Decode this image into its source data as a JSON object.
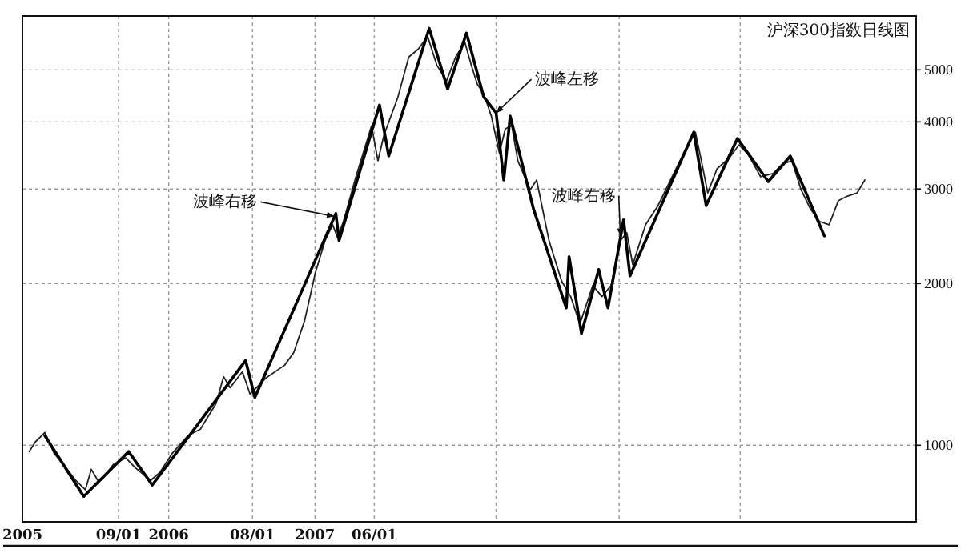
{
  "chart_data": {
    "type": "line",
    "title": "沪深300指数日线图",
    "xlim": [
      "2005-01-04",
      "2011-02-12"
    ],
    "ylim": [
      720,
      6300
    ],
    "log": "y",
    "grid": true,
    "marker": "none",
    "line_style": "solid",
    "xticks": [
      {
        "value": "2005-01-04",
        "label": "2005"
      },
      {
        "value": "2005-09-01",
        "label": "09/01"
      },
      {
        "value": "2006-01-04",
        "label": "2006"
      },
      {
        "value": "2006-08-01",
        "label": "08/01"
      },
      {
        "value": "2007-01-04",
        "label": "2007"
      },
      {
        "value": "2007-06-01",
        "label": "06/01"
      },
      {
        "value": "2008-03-31",
        "label": null
      },
      {
        "value": "2009-02-01",
        "label": null
      },
      {
        "value": "2009-11-30",
        "label": null
      }
    ],
    "yticks": [
      1000,
      2000,
      3000,
      4000,
      5000
    ],
    "series": [
      {
        "color": "#222222",
        "x": [
          "2005-01-21",
          "2005-02-05",
          "2005-03-01",
          "2005-03-24",
          "2005-04-16",
          "2005-05-17",
          "2005-06-10",
          "2005-06-25",
          "2005-07-11",
          "2005-07-26",
          "2005-08-19",
          "2005-09-19",
          "2005-10-12",
          "2005-11-20",
          "2005-12-13",
          "2006-01-13",
          "2006-02-21",
          "2006-03-24",
          "2006-05-02",
          "2006-05-21",
          "2006-06-06",
          "2006-07-07",
          "2006-07-26",
          "2006-09-03",
          "2006-10-20",
          "2006-11-12",
          "2006-12-09",
          "2007-01-05",
          "2007-01-29",
          "2007-02-17",
          "2007-03-01",
          "2007-03-16",
          "2007-04-16",
          "2007-05-13",
          "2007-05-25",
          "2007-06-10",
          "2007-06-25",
          "2007-07-30",
          "2007-08-26",
          "2007-09-19",
          "2007-10-12",
          "2007-11-04",
          "2007-11-28",
          "2007-12-21",
          "2008-01-13",
          "2008-01-29",
          "2008-02-13",
          "2008-02-29",
          "2008-03-19",
          "2008-04-08",
          "2008-04-23",
          "2008-05-09",
          "2008-05-24",
          "2008-06-24",
          "2008-07-10",
          "2008-08-10",
          "2008-09-10",
          "2008-10-03",
          "2008-10-26",
          "2008-11-11",
          "2008-11-27",
          "2008-12-20",
          "2009-01-12",
          "2009-02-04",
          "2009-02-20",
          "2009-03-07",
          "2009-04-08",
          "2009-05-09",
          "2009-06-09",
          "2009-07-18",
          "2009-08-10",
          "2009-08-25",
          "2009-09-10",
          "2009-10-03",
          "2009-11-03",
          "2009-11-27",
          "2009-12-20",
          "2010-01-20",
          "2010-02-20",
          "2010-03-15",
          "2010-04-08",
          "2010-05-01",
          "2010-05-24",
          "2010-06-16",
          "2010-07-10",
          "2010-08-02",
          "2010-08-25",
          "2010-09-18",
          "2010-10-07"
        ],
        "values": [
          973,
          1014,
          1056,
          966,
          921,
          860,
          826,
          902,
          860,
          872,
          921,
          947,
          909,
          860,
          890,
          966,
          1042,
          1071,
          1195,
          1342,
          1280,
          1370,
          1245,
          1333,
          1409,
          1488,
          1706,
          2096,
          2403,
          2574,
          2436,
          2610,
          3161,
          3676,
          3935,
          3386,
          3778,
          4451,
          5283,
          5469,
          5775,
          5103,
          4765,
          5283,
          5626,
          5103,
          4701,
          4511,
          4100,
          3501,
          3883,
          3935,
          3386,
          2990,
          3117,
          2403,
          2025,
          1891,
          1683,
          1827,
          1984,
          1891,
          1984,
          2403,
          2487,
          2168,
          2574,
          2794,
          3117,
          3573,
          3828,
          3386,
          2950,
          3271,
          3429,
          3625,
          3477,
          3161,
          3205,
          3336,
          3386,
          2990,
          2756,
          2610,
          2574,
          2853,
          2910,
          2950,
          3117
        ]
      },
      {
        "color": "#000000",
        "x": [
          "2005-03-01",
          "2005-06-06",
          "2005-09-26",
          "2005-11-24",
          "2006-07-15",
          "2006-08-07",
          "2007-02-25",
          "2007-03-05",
          "2007-06-14",
          "2007-07-07",
          "2007-10-16",
          "2007-12-01",
          "2008-01-17",
          "2008-02-29",
          "2008-03-31",
          "2008-04-19",
          "2008-05-05",
          "2008-07-02",
          "2008-09-22",
          "2008-09-29",
          "2008-10-30",
          "2008-12-12",
          "2009-01-04",
          "2009-02-12",
          "2009-02-28",
          "2009-08-06",
          "2009-09-06",
          "2009-11-23",
          "2010-02-08",
          "2010-04-04",
          "2010-06-28"
        ],
        "values": [
          1042,
          803,
          973,
          843,
          1438,
          1228,
          2700,
          2403,
          4301,
          3455,
          5975,
          4606,
          5855,
          4451,
          4157,
          3117,
          4100,
          2756,
          1802,
          2244,
          1615,
          2124,
          1802,
          2627,
          2067,
          3828,
          2794,
          3725,
          3096,
          3455,
          2453
        ]
      }
    ],
    "annotations": [
      {
        "text": "波峰右移",
        "x": "2007-02-21",
        "y": 2668
      },
      {
        "text": "波峰左移",
        "x": "2008-03-31",
        "y": 4157
      },
      {
        "text": "波峰右移",
        "x": "2009-02-04",
        "y": 2453
      }
    ]
  }
}
